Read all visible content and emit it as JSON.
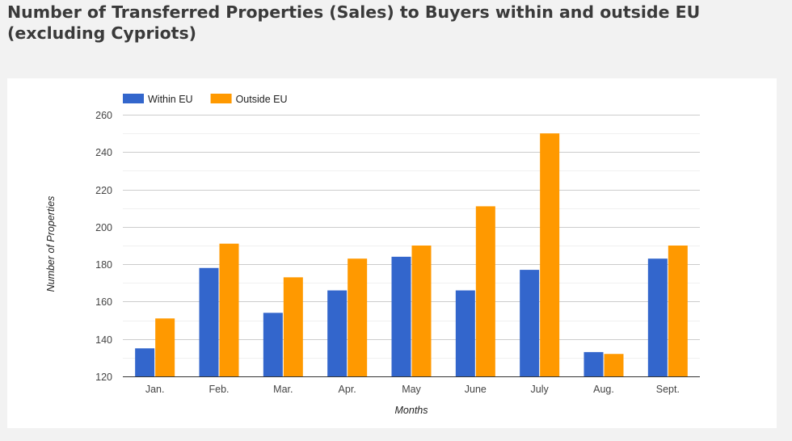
{
  "page": {
    "title": "Number of Transferred Properties (Sales) to Buyers within and outside EU (excluding Cypriots)"
  },
  "chart_data": {
    "type": "bar",
    "title": "Number of Transferred Properties (Sales) to Buyers within and outside EU (excluding Cypriots)",
    "xlabel": "Months",
    "ylabel": "Number of Properties",
    "categories": [
      "Jan.",
      "Feb.",
      "Mar.",
      "Apr.",
      "May",
      "June",
      "July",
      "Aug.",
      "Sept."
    ],
    "series": [
      {
        "name": "Within EU",
        "color": "#3366cc",
        "values": [
          135,
          178,
          154,
          166,
          184,
          166,
          177,
          133,
          183
        ]
      },
      {
        "name": "Outside EU",
        "color": "#ff9900",
        "values": [
          151,
          191,
          173,
          183,
          190,
          211,
          250,
          132,
          190
        ]
      }
    ],
    "ylim": [
      120,
      260
    ],
    "yticks": [
      120,
      140,
      160,
      180,
      200,
      220,
      240,
      260
    ],
    "grid": true,
    "legend": "top-left"
  }
}
